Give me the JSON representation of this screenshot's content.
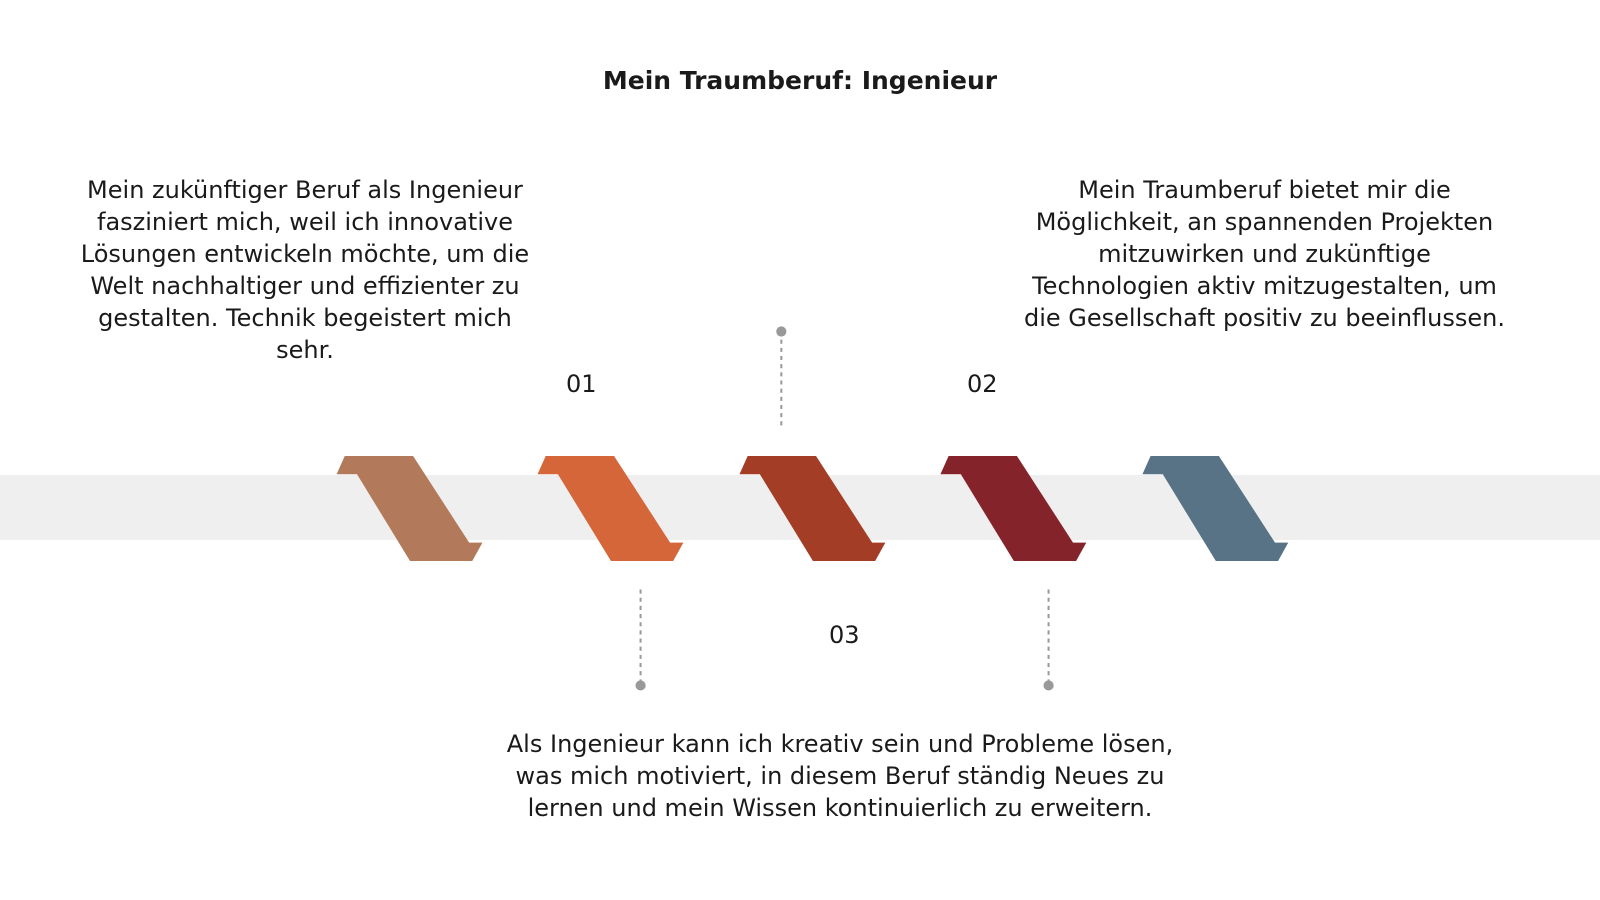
{
  "title": "Mein Traumberuf: Ingenieur",
  "steps": [
    {
      "number": "01",
      "text": "Mein zukünftiger Beruf als Ingenieur fasziniert mich, weil ich innovative Lösungen entwickeln möchte, um die Welt nachhaltiger und effizienter zu gestalten. Technik begeistert mich sehr."
    },
    {
      "number": "02",
      "text": "Mein Traumberuf bietet mir die Möglichkeit, an spannenden Projekten mitzuwirken und zukünftige Technologien aktiv mitzugestalten, um die Gesellschaft positiv zu beeinflussen."
    },
    {
      "number": "03",
      "text": "Als Ingenieur kann ich kreativ sein und Probleme lösen, was mich motiviert, in diesem Beruf ständig Neues zu lernen und mein Wissen kontinuierlich zu erweitern."
    }
  ]
}
